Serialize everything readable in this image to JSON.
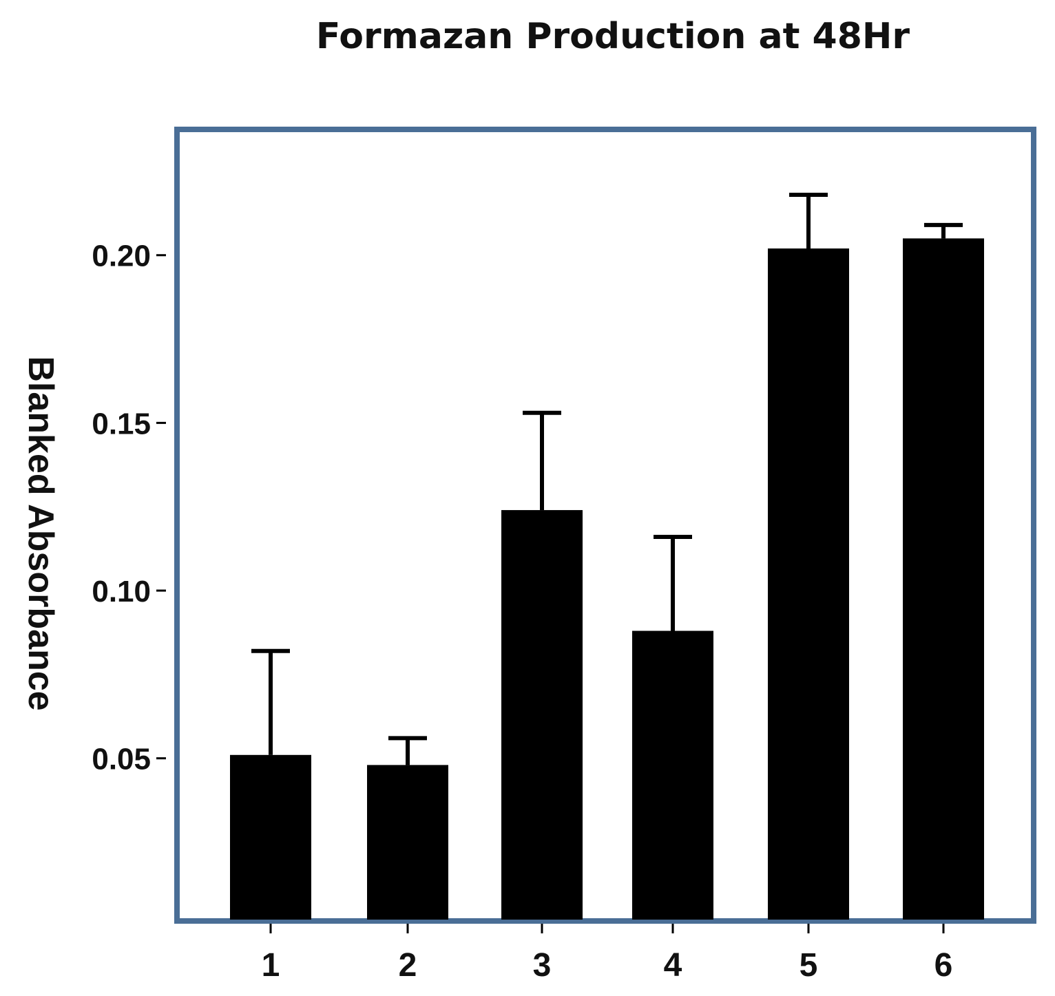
{
  "chart_data": {
    "type": "bar",
    "title": "Formazan Production at 48Hr",
    "xlabel": "",
    "ylabel": "Blanked Absorbance",
    "categories": [
      "1",
      "2",
      "3",
      "4",
      "5",
      "6"
    ],
    "values": [
      0.051,
      0.048,
      0.124,
      0.088,
      0.202,
      0.205
    ],
    "error_upper": [
      0.082,
      0.056,
      0.153,
      0.116,
      0.218,
      0.209
    ],
    "yticks": [
      "0.05",
      "0.10",
      "0.15",
      "0.20"
    ],
    "ytick_values": [
      0.05,
      0.1,
      0.15,
      0.2
    ],
    "ylim": [
      0.0015,
      0.2375
    ],
    "grid": false,
    "legend": "none",
    "bar_color": "#000000",
    "frame_color": "#4a6e96"
  }
}
